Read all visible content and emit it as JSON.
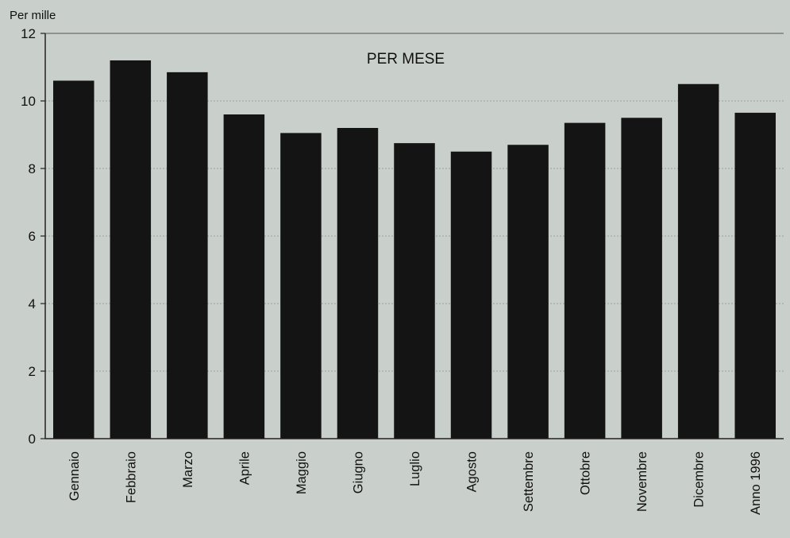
{
  "chart_data": {
    "type": "bar",
    "title": "PER MESE",
    "ylabel": "Per mille",
    "xlabel": "",
    "categories": [
      "Gennaio",
      "Febbraio",
      "Marzo",
      "Aprile",
      "Maggio",
      "Giugno",
      "Luglio",
      "Agosto",
      "Settembre",
      "Ottobre",
      "Novembre",
      "Dicembre",
      "Anno 1996"
    ],
    "values": [
      10.6,
      11.2,
      10.85,
      9.6,
      9.05,
      9.2,
      8.75,
      8.5,
      8.7,
      9.35,
      9.5,
      10.5,
      9.65
    ],
    "ylim": [
      0,
      12
    ],
    "yticks": [
      "0",
      "2",
      "4",
      "6",
      "8",
      "10",
      "12"
    ],
    "grid": true,
    "colors": {
      "bar": "#141414",
      "background": "#c9cfcb",
      "grid": "#9aa39e",
      "axis": "#222222"
    }
  }
}
